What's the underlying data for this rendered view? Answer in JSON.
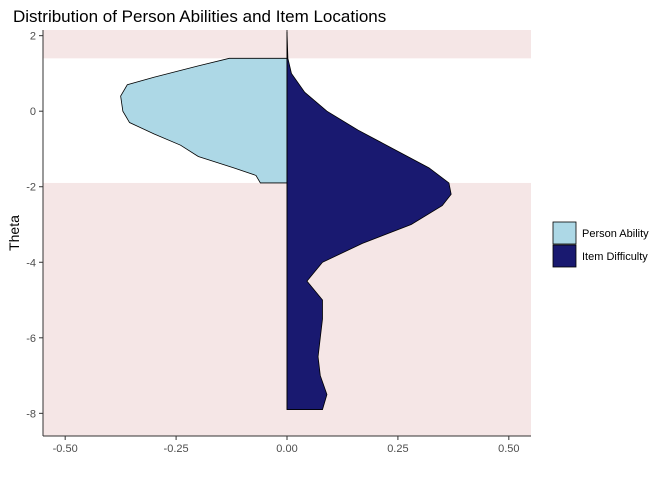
{
  "chart_data": {
    "type": "area",
    "orientation": "vertical-mirrored-density",
    "title": "Distribution of Person Abilities and Item Locations",
    "xlabel": "",
    "ylabel": "Theta",
    "xlim": [
      -0.55,
      0.55
    ],
    "ylim": [
      -8.6,
      2.15
    ],
    "x_ticks": [
      -0.5,
      -0.25,
      0,
      0.25,
      0.5
    ],
    "x_tick_labels": [
      "-0.50",
      "-0.25",
      "0.00",
      "0.25",
      "0.50"
    ],
    "y_ticks": [
      2,
      0,
      -2,
      -4,
      -6,
      -8
    ],
    "y_tick_labels": [
      "2",
      "0",
      "-2",
      "-4",
      "-6",
      "-8"
    ],
    "grid": false,
    "shaded_bands": [
      {
        "from": 1.4,
        "to": 2.15,
        "color": "#f5e6e6"
      },
      {
        "from": -8.6,
        "to": -1.9,
        "color": "#f5e6e6"
      }
    ],
    "legend": {
      "placement": "right",
      "entries": [
        {
          "label": "Person Ability",
          "color": "#add8e6"
        },
        {
          "label": "Item Difficulty",
          "color": "#191970"
        }
      ]
    },
    "series": [
      {
        "name": "Person Ability",
        "side": "left",
        "color": "#add8e6",
        "points": [
          {
            "theta": 1.4,
            "density": 0.13
          },
          {
            "theta": 1.2,
            "density": 0.2
          },
          {
            "theta": 0.9,
            "density": 0.3
          },
          {
            "theta": 0.7,
            "density": 0.36
          },
          {
            "theta": 0.4,
            "density": 0.375
          },
          {
            "theta": 0.0,
            "density": 0.37
          },
          {
            "theta": -0.3,
            "density": 0.355
          },
          {
            "theta": -0.6,
            "density": 0.3
          },
          {
            "theta": -0.9,
            "density": 0.24
          },
          {
            "theta": -1.2,
            "density": 0.2
          },
          {
            "theta": -1.5,
            "density": 0.12
          },
          {
            "theta": -1.7,
            "density": 0.07
          },
          {
            "theta": -1.9,
            "density": 0.06
          }
        ]
      },
      {
        "name": "Item Difficulty",
        "side": "right",
        "color": "#191970",
        "points": [
          {
            "theta": 2.1,
            "density": 0.0
          },
          {
            "theta": 1.4,
            "density": 0.002
          },
          {
            "theta": 1.0,
            "density": 0.01
          },
          {
            "theta": 0.5,
            "density": 0.04
          },
          {
            "theta": 0.0,
            "density": 0.09
          },
          {
            "theta": -0.5,
            "density": 0.16
          },
          {
            "theta": -1.0,
            "density": 0.24
          },
          {
            "theta": -1.5,
            "density": 0.32
          },
          {
            "theta": -1.9,
            "density": 0.365
          },
          {
            "theta": -2.2,
            "density": 0.37
          },
          {
            "theta": -2.5,
            "density": 0.35
          },
          {
            "theta": -3.0,
            "density": 0.28
          },
          {
            "theta": -3.5,
            "density": 0.17
          },
          {
            "theta": -4.0,
            "density": 0.08
          },
          {
            "theta": -4.5,
            "density": 0.045
          },
          {
            "theta": -5.0,
            "density": 0.08
          },
          {
            "theta": -5.5,
            "density": 0.08
          },
          {
            "theta": -6.0,
            "density": 0.075
          },
          {
            "theta": -6.5,
            "density": 0.07
          },
          {
            "theta": -7.0,
            "density": 0.075
          },
          {
            "theta": -7.5,
            "density": 0.09
          },
          {
            "theta": -7.9,
            "density": 0.08
          }
        ]
      }
    ]
  }
}
